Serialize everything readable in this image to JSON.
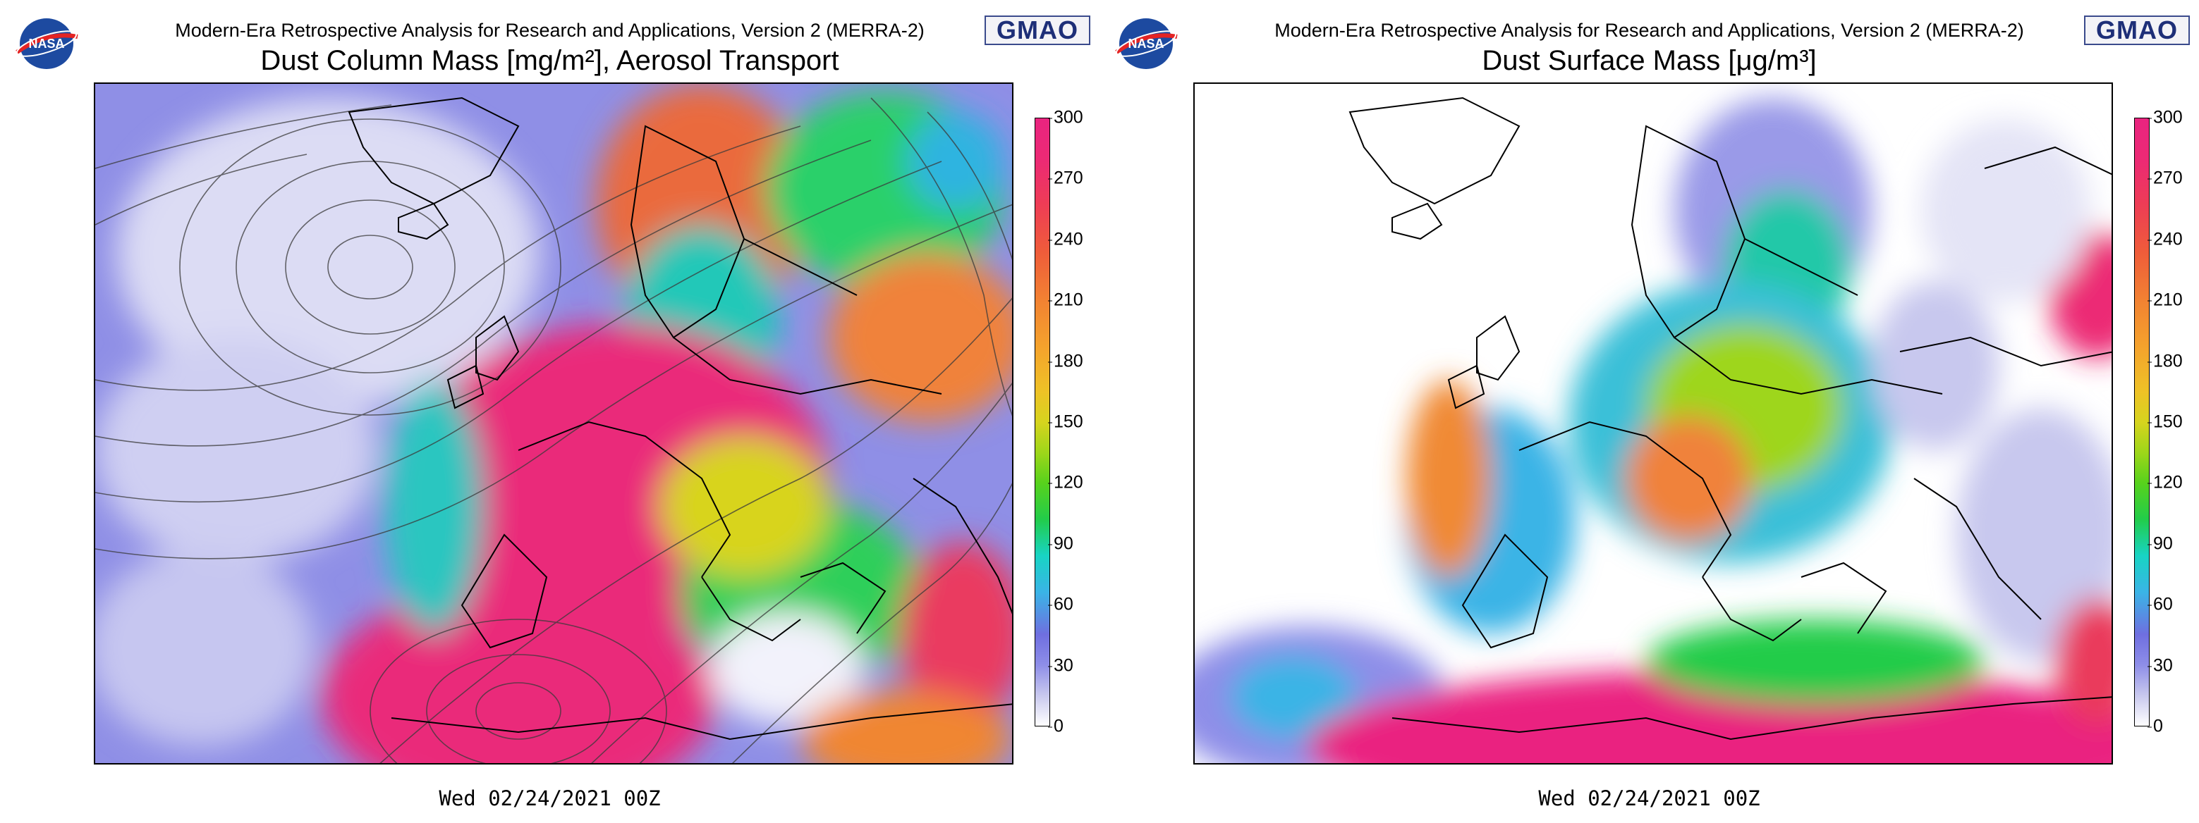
{
  "header": {
    "subtitle": "Modern-Era Retrospective Analysis for Research and Applications, Version 2 (MERRA-2)",
    "nasa_logo_text": "NASA",
    "gmao_logo_text": "GMAO"
  },
  "panels": [
    {
      "title": "Dust Column Mass [mg/m²], Aerosol Transport",
      "colorbar": {
        "ticks": [
          "300",
          "270",
          "240",
          "210",
          "180",
          "150",
          "120",
          "90",
          "60",
          "30",
          "0"
        ]
      },
      "date": "Wed 02/24/2021 00Z"
    },
    {
      "title": "Dust Surface Mass [μg/m³]",
      "colorbar": {
        "ticks": [
          "300",
          "270",
          "240",
          "210",
          "180",
          "150",
          "120",
          "90",
          "60",
          "30",
          "0"
        ]
      },
      "date": "Wed 02/24/2021 00Z"
    }
  ],
  "colors": {
    "low": "#ffffff",
    "lavender": "#8e8ee8",
    "cyan": "#18d4c4",
    "green": "#22cc4a",
    "yellow": "#d6d41e",
    "orange": "#f28232",
    "magenta": "#ea2480"
  }
}
